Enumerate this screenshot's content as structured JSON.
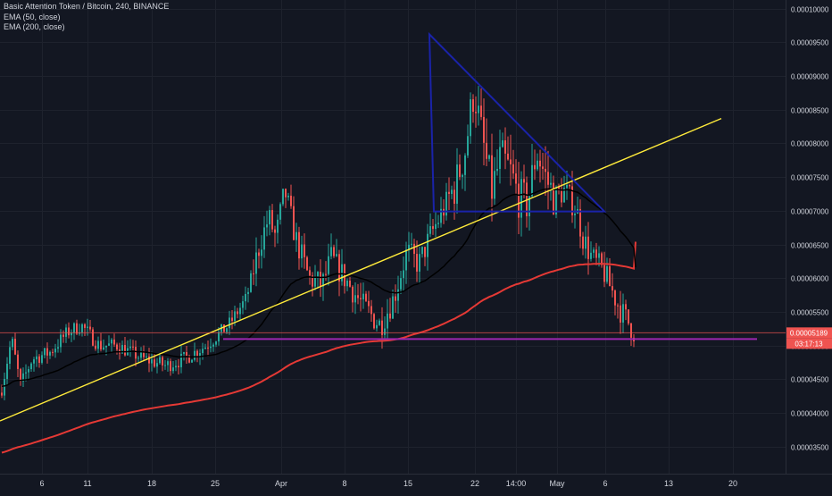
{
  "chart_data": {
    "type": "candlestick",
    "title": "Basic Attention Token / Bitcoin, 240, BINANCE",
    "indicators": [
      {
        "name": "EMA (50, close)",
        "color": "#000000"
      },
      {
        "name": "EMA (200, close)",
        "color": "#e53935"
      }
    ],
    "y_ticks": [
      "0.00010000",
      "0.00009500",
      "0.00009000",
      "0.00008500",
      "0.00008000",
      "0.00007500",
      "0.00007000",
      "0.00006500",
      "0.00006000",
      "0.00005500",
      "0.00005000",
      "0.00004500",
      "0.00004000",
      "0.00003500"
    ],
    "y_range": [
      3.15e-05,
      0.0001005
    ],
    "x_ticks": [
      "6",
      "11",
      "18",
      "25",
      "Apr",
      "8",
      "15",
      "22",
      "14:00",
      "May",
      "6",
      "13",
      "20"
    ],
    "price_tag": "0.00005189",
    "countdown_tag": "03:17:13",
    "colors": {
      "background": "#131722",
      "up": "#26a69a",
      "down": "#ef5350",
      "ema50": "#000000",
      "ema200": "#e53935",
      "trendline": "#ffeb3b",
      "support": "#9c27b0",
      "triangle": "#1a23a8",
      "text": "#d1d4dc"
    },
    "drawings": {
      "trendline": [
        [
          -10,
          3.88e-05
        ],
        [
          -0.5,
          7.11e-05
        ],
        [
          10,
          8.37e-05
        ]
      ],
      "support_level": 5.095e-05,
      "triangle": [
        [
          -5.1,
          9.62e-05
        ],
        [
          -5.0,
          6.99e-05
        ],
        [
          1.4,
          6.99e-05
        ]
      ],
      "current_price_line": 5.189e-05
    }
  }
}
